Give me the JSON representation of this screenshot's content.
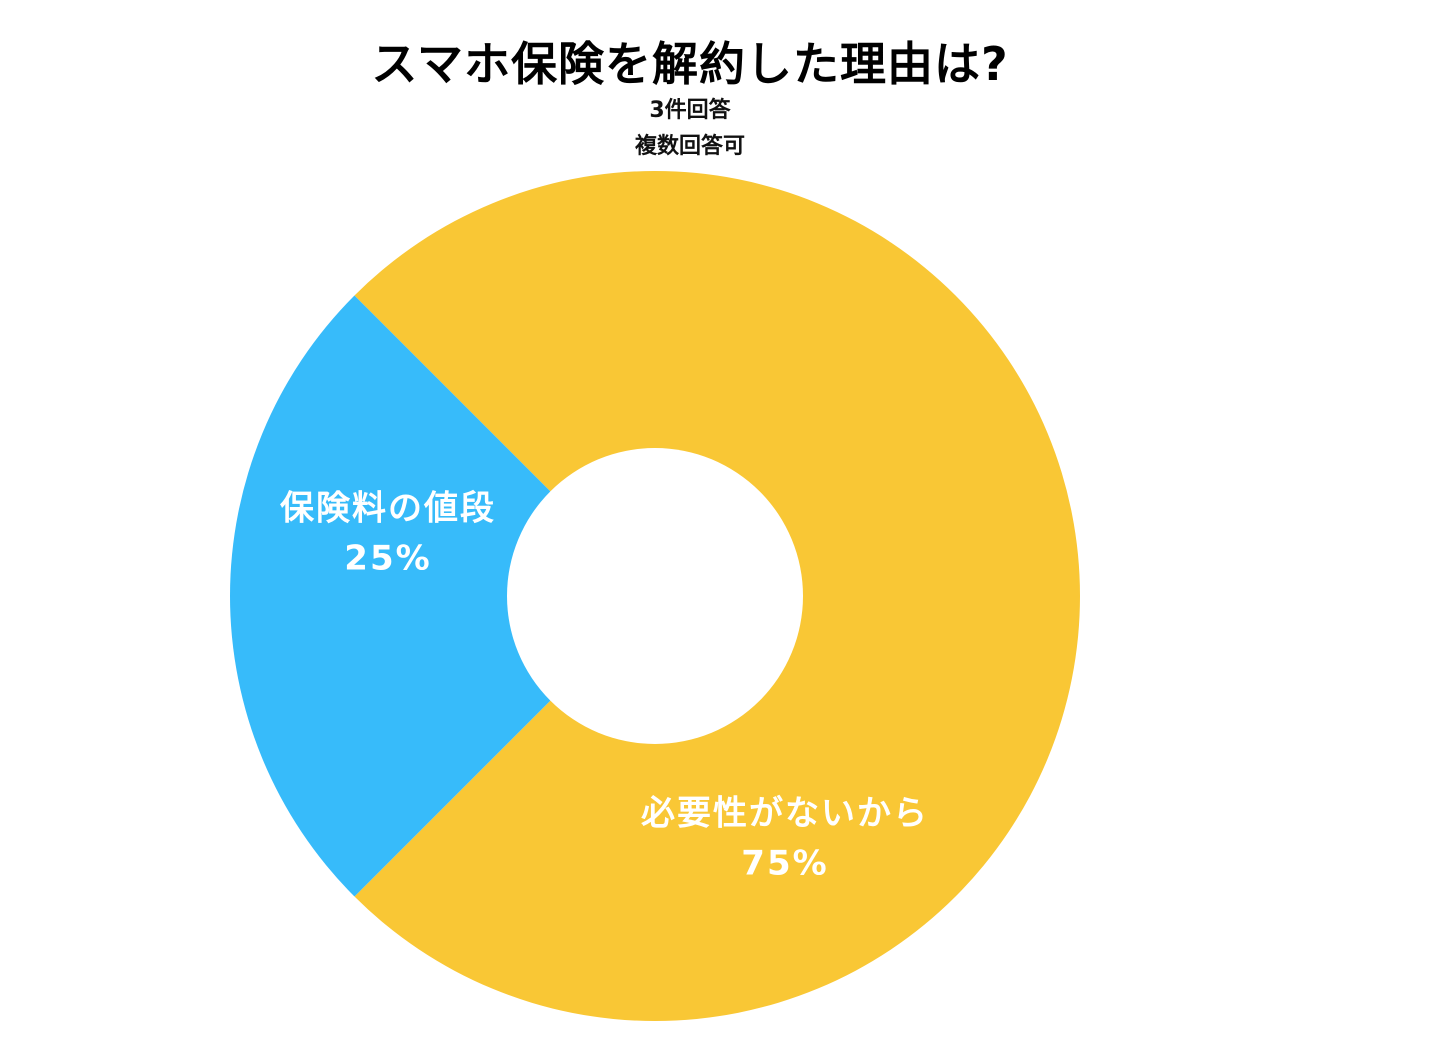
{
  "chart_data": {
    "type": "pie",
    "title": "スマホ保険を解約した理由は?",
    "subtitle_lines": [
      "3件回答",
      "複数回答可"
    ],
    "slices": [
      {
        "label": "必要性がないから",
        "value": 75,
        "value_label": "75%",
        "color": "#F9C735"
      },
      {
        "label": "保険料の値段",
        "value": 25,
        "value_label": "25%",
        "color": "#37BBFA"
      }
    ],
    "legend": "none",
    "style": "donut"
  }
}
